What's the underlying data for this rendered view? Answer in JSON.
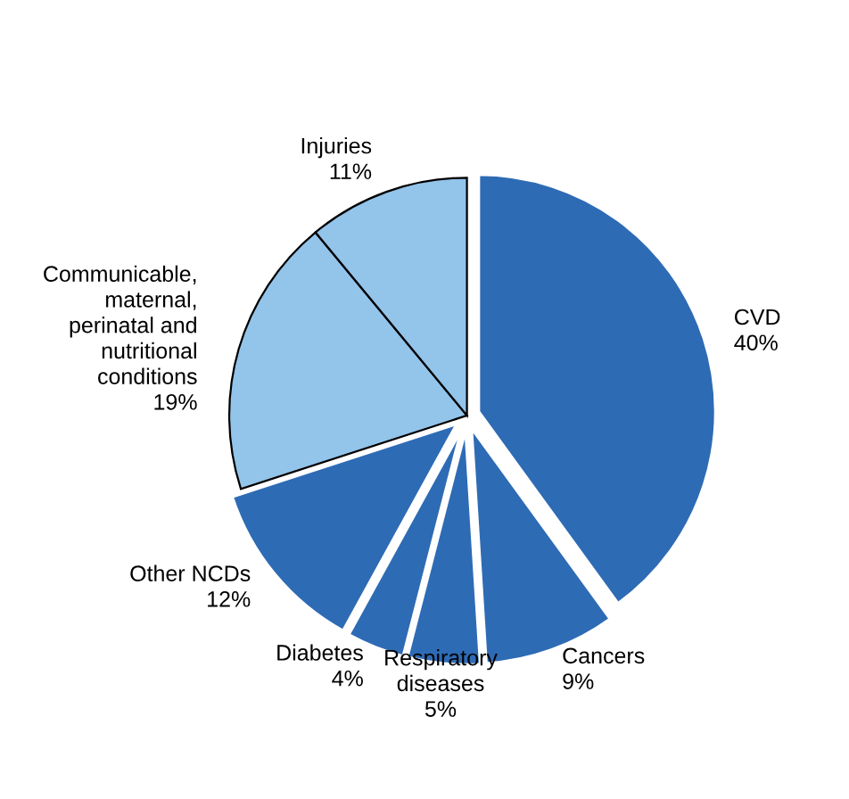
{
  "chart_data": {
    "type": "pie",
    "categories": [
      "CVD",
      "Cancers",
      "Respiratory\ndiseases",
      "Diabetes",
      "Other NCDs",
      "Communicable,\nmaternal,\nperinatal and\nnutritional\nconditions",
      "Injuries"
    ],
    "values": [
      40,
      9,
      5,
      4,
      12,
      19,
      11
    ],
    "value_labels": [
      "40%",
      "9%",
      "5%",
      "4%",
      "12%",
      "19%",
      "11%"
    ],
    "colors": [
      "#2e6bb5",
      "#2e6bb5",
      "#2e6bb5",
      "#2e6bb5",
      "#2e6bb5",
      "#93c4ea",
      "#93c4ea"
    ],
    "legend": false
  }
}
